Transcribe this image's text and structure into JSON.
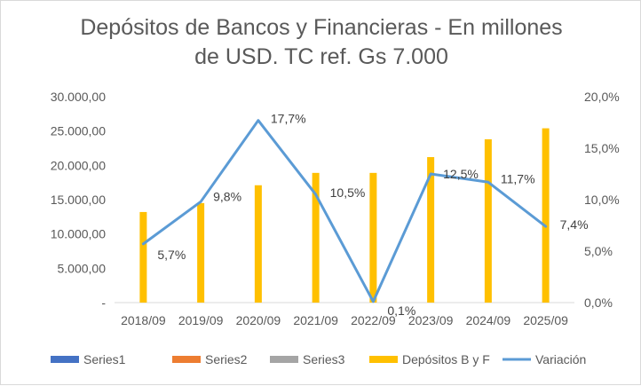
{
  "chart_data": {
    "type": "bar",
    "title_lines": [
      "Depósitos de Bancos y Financieras - En millones",
      "de USD. TC ref. Gs 7.000"
    ],
    "categories": [
      "2018/09",
      "2019/09",
      "2020/09",
      "2021/09",
      "2022/09",
      "2023/09",
      "2024/09",
      "2025/09"
    ],
    "series": [
      {
        "name": "Series1",
        "type": "bar",
        "axis": "left",
        "color": "#4472c4",
        "values": [
          null,
          null,
          null,
          null,
          null,
          null,
          null,
          null
        ]
      },
      {
        "name": "Series2",
        "type": "bar",
        "axis": "left",
        "color": "#ed7d31",
        "values": [
          null,
          null,
          null,
          null,
          null,
          null,
          null,
          null
        ]
      },
      {
        "name": "Series3",
        "type": "bar",
        "axis": "left",
        "color": "#a5a5a5",
        "values": [
          null,
          null,
          null,
          null,
          null,
          null,
          null,
          null
        ]
      },
      {
        "name": "Depósitos B y F",
        "type": "bar",
        "axis": "left",
        "color": "#ffc000",
        "values": [
          13200,
          14500,
          17100,
          18900,
          18900,
          21200,
          23800,
          25400
        ]
      },
      {
        "name": "Variación",
        "type": "line",
        "axis": "right",
        "color": "#5b9bd5",
        "values": [
          5.7,
          9.8,
          17.7,
          10.5,
          0.1,
          12.5,
          11.7,
          7.4
        ],
        "data_labels": [
          "5,7%",
          "9,8%",
          "17,7%",
          "10,5%",
          "0,1%",
          "12,5%",
          "11,7%",
          "7,4%"
        ]
      }
    ],
    "y_left": {
      "min": 0,
      "max": 30000,
      "ticks": [
        0,
        5000,
        10000,
        15000,
        20000,
        25000,
        30000
      ],
      "tick_labels": [
        "-",
        "5.000,00",
        "10.000,00",
        "15.000,00",
        "20.000,00",
        "25.000,00",
        "30.000,00"
      ]
    },
    "y_right": {
      "min": 0,
      "max": 20,
      "ticks": [
        0,
        5,
        10,
        15,
        20
      ],
      "tick_labels": [
        "0,0%",
        "5,0%",
        "10,0%",
        "15,0%",
        "20,0%"
      ]
    },
    "grid": false,
    "legend_position": "bottom"
  }
}
